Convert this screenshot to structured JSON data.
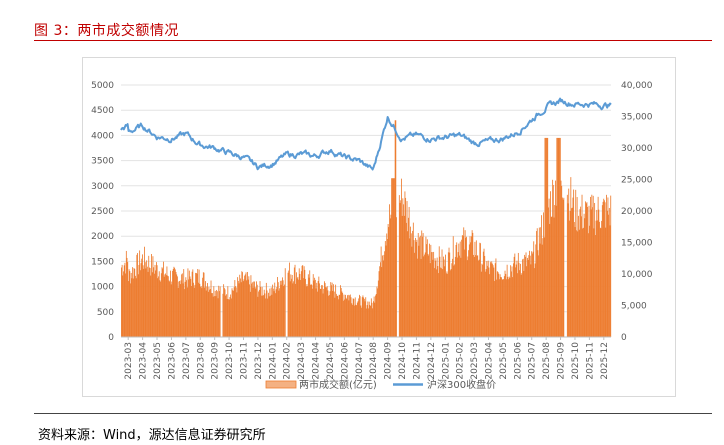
{
  "figure": {
    "title": "图 3：两市成交额情况",
    "source": "资料来源：Wind，源达信息证券研究所"
  },
  "chart_data": {
    "type": "bar+line",
    "title": "",
    "x_tick_labels": [
      "2023-03",
      "2023-04",
      "2023-05",
      "2023-06",
      "2023-07",
      "2023-08",
      "2023-09",
      "2023-10",
      "2023-11",
      "2023-12",
      "2024-01",
      "2024-02",
      "2024-03",
      "2024-04",
      "2024-05",
      "2024-06",
      "2024-07",
      "2024-08",
      "2024-09",
      "2024-10",
      "2024-11",
      "2024-12",
      "2025-01",
      "2025-02",
      "2025-03",
      "2025-04",
      "2025-05",
      "2025-06",
      "2025-07",
      "2025-08",
      "2025-09",
      "2025-10",
      "2025-11",
      "2025-12"
    ],
    "y_left": {
      "ylim": [
        0,
        5000
      ],
      "ticks": [
        "0",
        "500",
        "1000",
        "1500",
        "2000",
        "2500",
        "3000",
        "3500",
        "4000",
        "4500",
        "5000"
      ]
    },
    "y_right": {
      "ylim": [
        0,
        40000
      ],
      "ticks": [
        "0",
        "5,000",
        "10,000",
        "15,000",
        "20,000",
        "25,000",
        "30,000",
        "35,000",
        "40,000"
      ]
    },
    "legend_position": "bottom",
    "series": [
      {
        "name": "两市成交额(亿元)",
        "type": "bar",
        "axis": "left",
        "color": "#ed7d31",
        "monthly_values": [
          1200,
          1550,
          1350,
          1200,
          1150,
          1200,
          950,
          880,
          1150,
          950,
          900,
          1300,
          1250,
          1050,
          950,
          850,
          720,
          650,
          2300,
          2800,
          1900,
          1650,
          1450,
          1900,
          1800,
          1350,
          1300,
          1450,
          1500,
          2400,
          3300,
          2500,
          2400,
          2500
        ]
      },
      {
        "name": "沪深300收盘价",
        "type": "line",
        "axis": "right",
        "color": "#5b9bd5",
        "monthly_values": [
          32500,
          33500,
          31800,
          31500,
          32200,
          30500,
          30000,
          29200,
          28500,
          27000,
          27500,
          28900,
          29000,
          28700,
          29700,
          28500,
          28000,
          26500,
          35000,
          31500,
          32000,
          31500,
          31700,
          32000,
          30800,
          31000,
          31500,
          32500,
          34500,
          36500,
          37500,
          37000,
          37000,
          36800
        ]
      }
    ]
  }
}
